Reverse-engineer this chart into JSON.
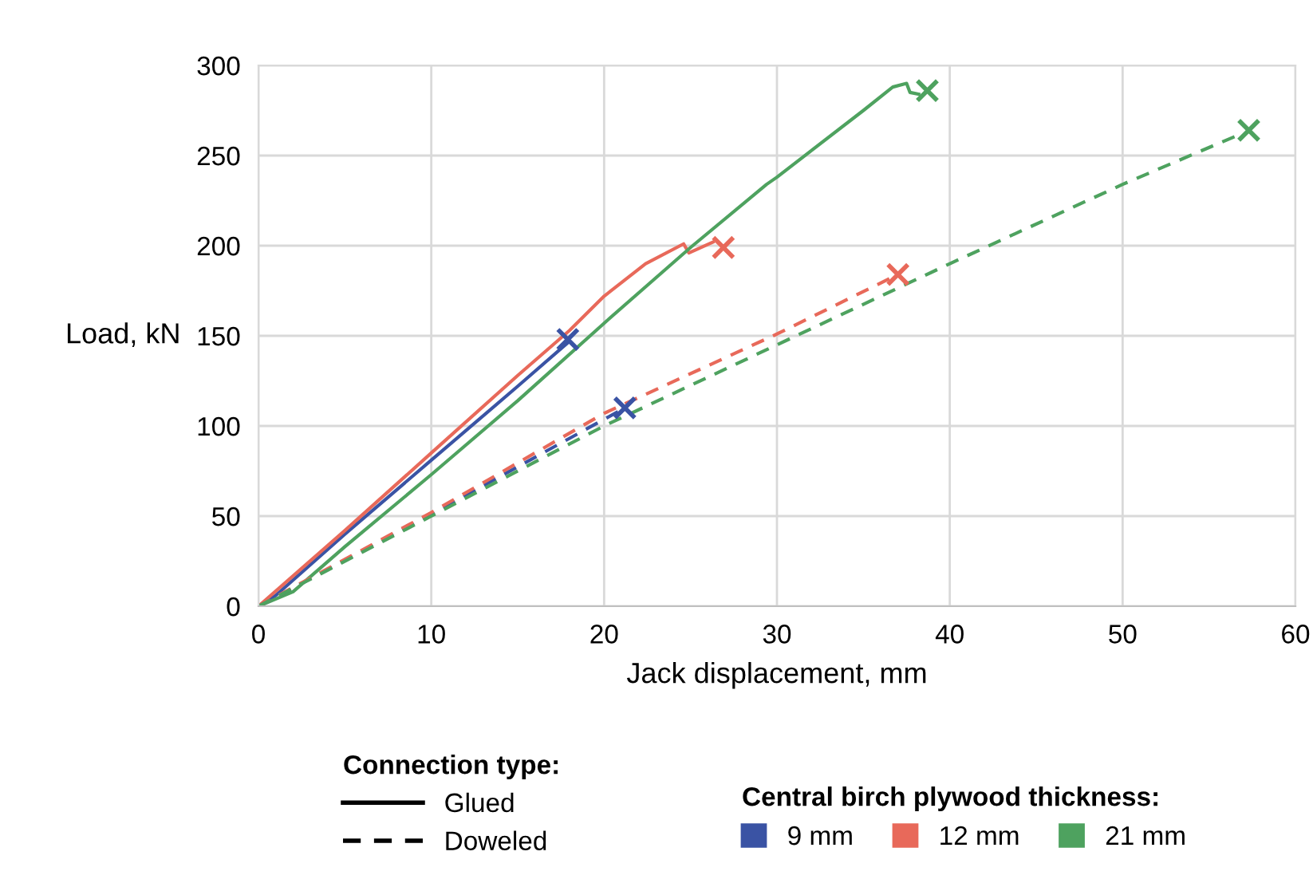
{
  "chart_data": {
    "type": "line",
    "xlabel": "Jack displacement, mm",
    "ylabel": "Load, kN",
    "xlim": [
      0,
      60
    ],
    "ylim": [
      0,
      300
    ],
    "xticks": [
      0,
      10,
      20,
      30,
      40,
      50,
      60
    ],
    "yticks": [
      0,
      50,
      100,
      150,
      200,
      250,
      300
    ],
    "grid": true,
    "legend": "bottom",
    "legend_title": "Central birch plywood thickness:",
    "annotations": [
      "Connection type:",
      "Glued",
      "Doweled"
    ],
    "series": [
      {
        "name": "9 mm",
        "line_style": "solid",
        "color": "#3a53a4",
        "x": [
          0,
          1,
          5,
          10,
          15,
          18
        ],
        "values": [
          0,
          6,
          40,
          81,
          122,
          147
        ]
      },
      {
        "name": "12 mm",
        "line_style": "solid",
        "color": "#e8695a",
        "x": [
          0,
          5,
          10,
          15,
          18,
          20,
          22.4,
          24.6,
          24.9,
          26.3
        ],
        "values": [
          0,
          42,
          85,
          128,
          153,
          172,
          190,
          201,
          196,
          202
        ]
      },
      {
        "name": "21 mm",
        "line_style": "solid",
        "color": "#4ea25f",
        "x": [
          0,
          2,
          5,
          10,
          15,
          20,
          25,
          29.4,
          30,
          35,
          36.7,
          37.5,
          37.7,
          38.2
        ],
        "values": [
          0,
          8,
          33,
          73,
          114,
          157,
          199,
          234,
          238,
          275,
          288,
          290,
          285,
          284
        ]
      },
      {
        "line_style": "dashed",
        "color": "#3a53a4",
        "x": [
          0,
          1,
          10,
          21.2
        ],
        "values": [
          0,
          5,
          51,
          110
        ]
      },
      {
        "line_style": "dashed",
        "color": "#e8695a",
        "x": [
          0,
          10,
          20,
          30,
          37
        ],
        "values": [
          0,
          52,
          107,
          151,
          184
        ]
      },
      {
        "line_style": "dashed",
        "color": "#4ea25f",
        "x": [
          0,
          10,
          20,
          30,
          40,
          50,
          56.6
        ],
        "values": [
          0,
          50,
          100,
          145,
          190,
          234,
          261
        ]
      },
      {
        "type": "scatter",
        "marker": "cross",
        "color": "#3a53a4",
        "x": [
          17.9,
          21.2
        ],
        "values": [
          148,
          110
        ]
      },
      {
        "type": "scatter",
        "marker": "cross",
        "color": "#e8695a",
        "x": [
          26.9,
          37
        ],
        "values": [
          199,
          184
        ]
      },
      {
        "type": "scatter",
        "marker": "cross",
        "color": "#4ea25f",
        "x": [
          38.7,
          57.3
        ],
        "values": [
          286,
          264
        ]
      }
    ]
  }
}
